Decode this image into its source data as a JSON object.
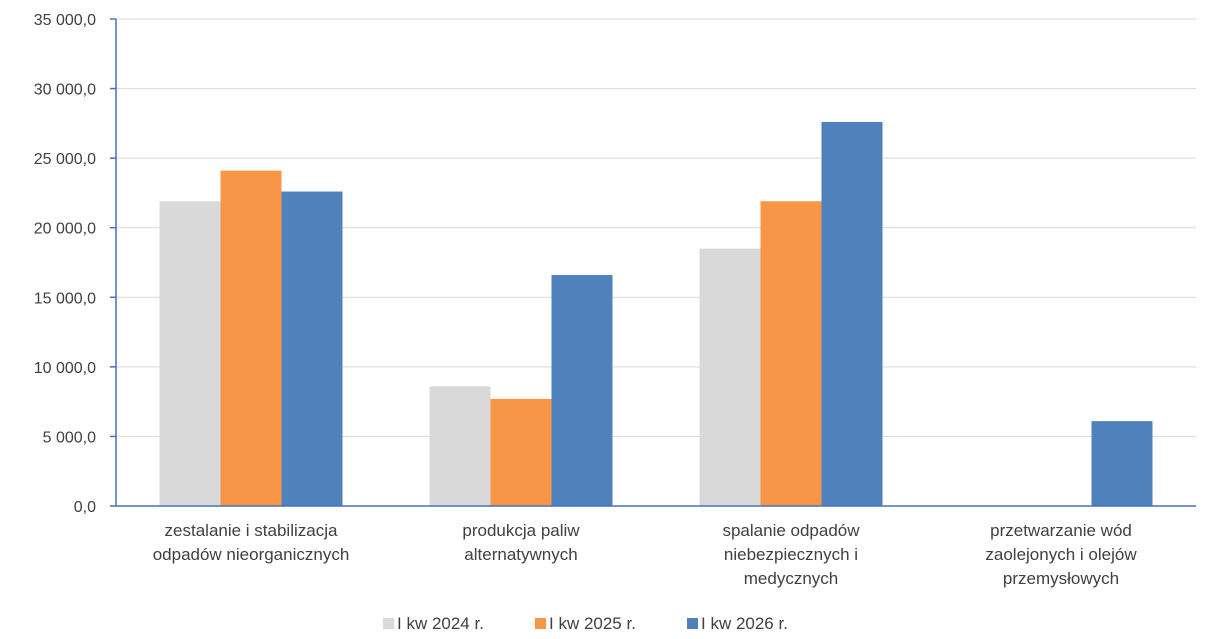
{
  "chart_data": {
    "type": "bar",
    "title": "",
    "xlabel": "",
    "ylabel": "",
    "ylim": [
      0,
      35000
    ],
    "yticks": [
      "0,0",
      "5 000,0",
      "10 000,0",
      "15 000,0",
      "20 000,0",
      "25 000,0",
      "30 000,0",
      "35 000,0"
    ],
    "ytick_values": [
      0,
      5000,
      10000,
      15000,
      20000,
      25000,
      30000,
      35000
    ],
    "grid": true,
    "legend_position": "bottom",
    "categories": [
      [
        "zestalanie i stabilizacja",
        "odpadów nieorganicznych"
      ],
      [
        "produkcja paliw",
        "alternatywnych"
      ],
      [
        "spalanie odpadów",
        "niebezpiecznych i",
        "medycznych"
      ],
      [
        "przetwarzanie wód",
        "zaolejonych i olejów",
        "przemysłowych"
      ]
    ],
    "series": [
      {
        "name": "I kw 2024 r.",
        "color": "#d9d9d9",
        "values": [
          21900,
          8600,
          18500,
          0
        ]
      },
      {
        "name": "I kw 2025 r.",
        "color": "#f79646",
        "values": [
          24100,
          7700,
          21900,
          0
        ]
      },
      {
        "name": "I kw 2026 r.",
        "color": "#4f81bd",
        "values": [
          22600,
          16600,
          27600,
          6100
        ]
      }
    ]
  }
}
